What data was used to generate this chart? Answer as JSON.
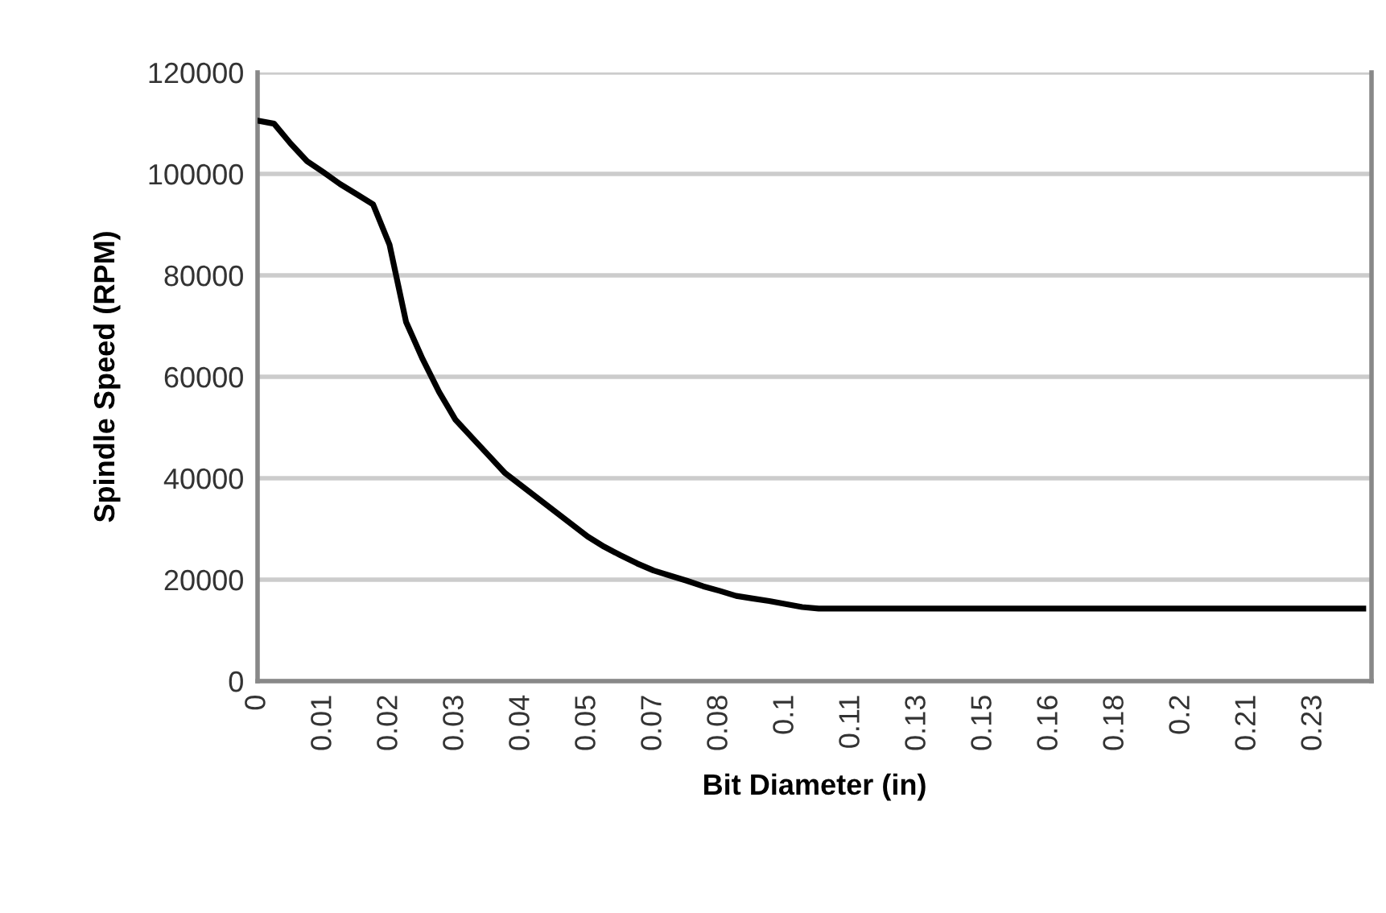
{
  "chart_data": {
    "type": "line",
    "xlabel": "Bit Diameter (in)",
    "ylabel": "Spindle Speed (RPM)",
    "categories": [
      "0",
      null,
      null,
      null,
      "0.01",
      null,
      null,
      null,
      "0.02",
      null,
      null,
      null,
      "0.03",
      null,
      null,
      null,
      "0.04",
      null,
      null,
      null,
      "0.05",
      null,
      null,
      null,
      "0.07",
      null,
      null,
      null,
      "0.08",
      null,
      null,
      null,
      "0.1",
      null,
      null,
      null,
      "0.11",
      null,
      null,
      null,
      "0.13",
      null,
      null,
      null,
      "0.15",
      null,
      null,
      null,
      "0.16",
      null,
      null,
      null,
      "0.18",
      null,
      null,
      null,
      "0.2",
      null,
      null,
      null,
      "0.21",
      null,
      null,
      null,
      "0.23",
      null,
      null,
      null
    ],
    "series": [
      {
        "color": "#000000",
        "values": [
          110500,
          109900,
          106000,
          102500,
          100300,
          98000,
          96000,
          94000,
          86000,
          70800,
          63500,
          57000,
          51500,
          48000,
          44500,
          41000,
          38500,
          36000,
          33500,
          31000,
          28500,
          26500,
          24800,
          23200,
          21800,
          20800,
          19800,
          18700,
          17800,
          16800,
          16300,
          15800,
          15200,
          14600,
          14300,
          14300,
          14300,
          14300,
          14300,
          14300,
          14300,
          14300,
          14300,
          14300,
          14300,
          14300,
          14300,
          14300,
          14300,
          14300,
          14300,
          14300,
          14300,
          14300,
          14300,
          14300,
          14300,
          14300,
          14300,
          14300,
          14300,
          14300,
          14300,
          14300,
          14300,
          14300,
          14300,
          14300
        ]
      }
    ],
    "ylim": [
      0,
      120000
    ],
    "yticks": [
      0,
      20000,
      40000,
      60000,
      80000,
      100000,
      120000
    ],
    "grid": "y",
    "marker": "none",
    "line_style": "solid"
  }
}
